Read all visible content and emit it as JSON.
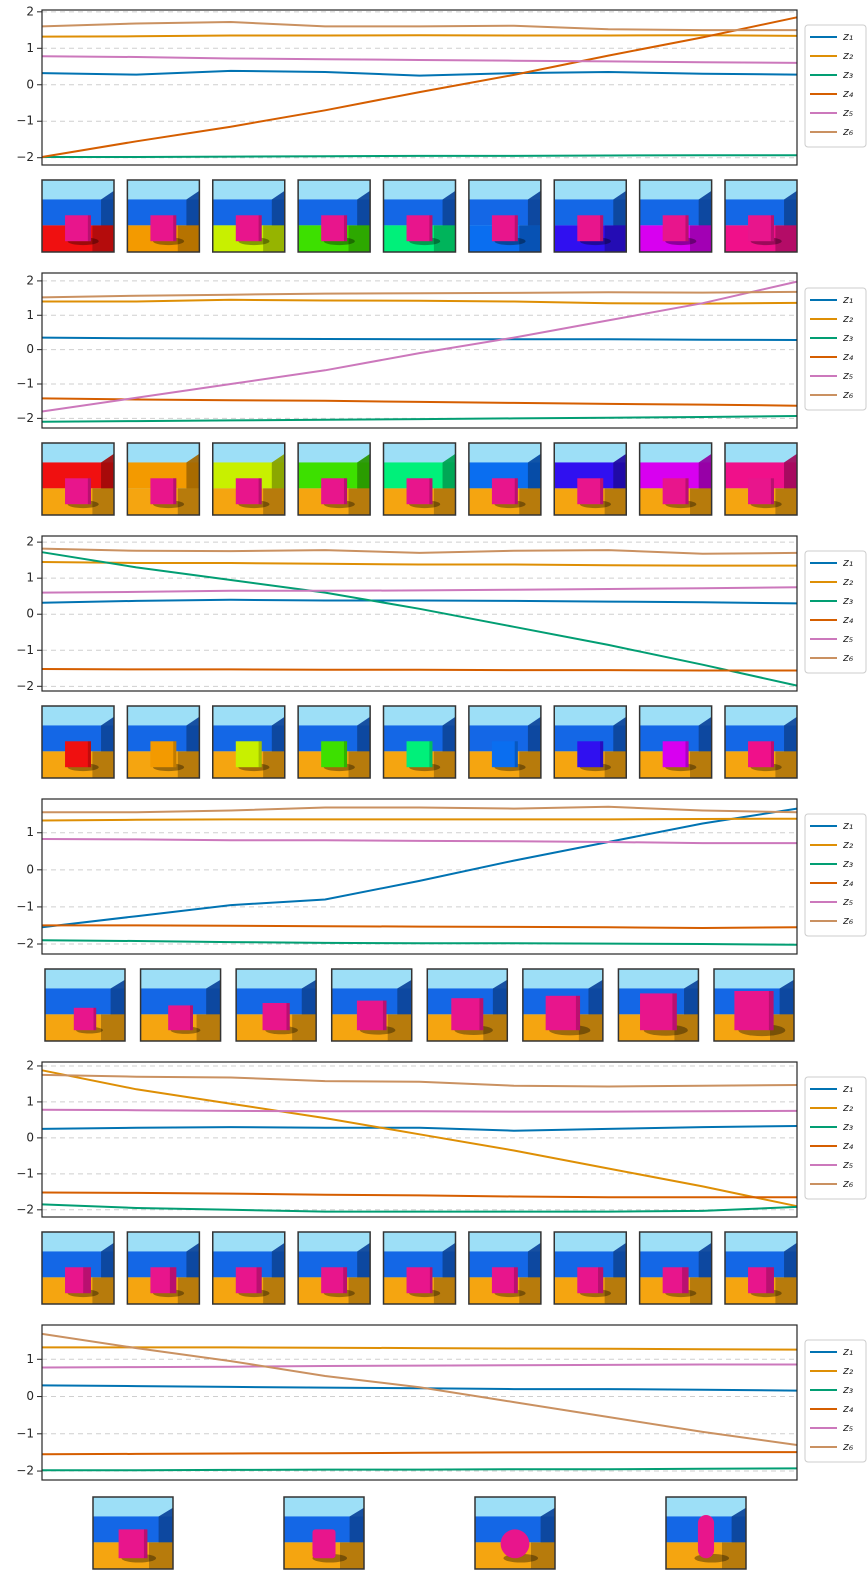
{
  "chart_data": [
    {
      "type": "line",
      "grid": true,
      "legend": "right",
      "ylim": [
        -2.2,
        2.05
      ],
      "yticks": [
        {
          "value": -2,
          "label": "−2"
        },
        {
          "value": -1,
          "label": "−1"
        },
        0,
        1,
        2
      ],
      "series": [
        {
          "name": "z₁",
          "color": "#0173b2",
          "values": [
            0.32,
            0.28,
            0.38,
            0.35,
            0.25,
            0.32,
            0.35,
            0.3,
            0.28
          ]
        },
        {
          "name": "z₂",
          "color": "#de8f05",
          "values": [
            1.32,
            1.33,
            1.35,
            1.35,
            1.36,
            1.35,
            1.35,
            1.36,
            1.34
          ]
        },
        {
          "name": "z₃",
          "color": "#029e73",
          "values": [
            -1.98,
            -1.98,
            -1.97,
            -1.96,
            -1.95,
            -1.95,
            -1.94,
            -1.93,
            -1.93
          ]
        },
        {
          "name": "z₄",
          "color": "#d55e00",
          "values": [
            -1.98,
            -1.55,
            -1.15,
            -0.7,
            -0.2,
            0.27,
            0.8,
            1.3,
            1.85
          ]
        },
        {
          "name": "z₅",
          "color": "#cc78bc",
          "values": [
            0.78,
            0.76,
            0.72,
            0.7,
            0.68,
            0.66,
            0.64,
            0.62,
            0.6
          ]
        },
        {
          "name": "z₆",
          "color": "#ca9161",
          "values": [
            1.6,
            1.68,
            1.72,
            1.6,
            1.6,
            1.62,
            1.52,
            1.5,
            1.5
          ]
        }
      ]
    },
    {
      "type": "line",
      "grid": true,
      "legend": "right",
      "ylim": [
        -2.28,
        2.23
      ],
      "yticks": [
        {
          "value": -2,
          "label": "−2"
        },
        {
          "value": -1,
          "label": "−1"
        },
        0,
        1,
        2
      ],
      "series": [
        {
          "name": "z₁",
          "color": "#0173b2",
          "values": [
            0.35,
            0.33,
            0.32,
            0.31,
            0.3,
            0.3,
            0.3,
            0.29,
            0.28
          ]
        },
        {
          "name": "z₂",
          "color": "#de8f05",
          "values": [
            1.4,
            1.4,
            1.45,
            1.43,
            1.42,
            1.4,
            1.35,
            1.34,
            1.36
          ]
        },
        {
          "name": "z₃",
          "color": "#029e73",
          "values": [
            -2.1,
            -2.08,
            -2.06,
            -2.04,
            -2.02,
            -2.0,
            -1.98,
            -1.96,
            -1.93
          ]
        },
        {
          "name": "z₄",
          "color": "#d55e00",
          "values": [
            -1.42,
            -1.45,
            -1.47,
            -1.49,
            -1.52,
            -1.55,
            -1.58,
            -1.6,
            -1.63
          ]
        },
        {
          "name": "z₅",
          "color": "#cc78bc",
          "values": [
            -1.8,
            -1.4,
            -1.0,
            -0.6,
            -0.1,
            0.35,
            0.85,
            1.35,
            1.98
          ]
        },
        {
          "name": "z₆",
          "color": "#ca9161",
          "values": [
            1.52,
            1.57,
            1.6,
            1.63,
            1.64,
            1.65,
            1.67,
            1.66,
            1.68
          ]
        }
      ]
    },
    {
      "type": "line",
      "grid": true,
      "legend": "right",
      "ylim": [
        -2.13,
        2.17
      ],
      "yticks": [
        {
          "value": -2,
          "label": "−2"
        },
        {
          "value": -1,
          "label": "−1"
        },
        0,
        1,
        2
      ],
      "series": [
        {
          "name": "z₁",
          "color": "#0173b2",
          "values": [
            0.32,
            0.37,
            0.4,
            0.38,
            0.38,
            0.37,
            0.35,
            0.33,
            0.3
          ]
        },
        {
          "name": "z₂",
          "color": "#de8f05",
          "values": [
            1.45,
            1.42,
            1.42,
            1.4,
            1.38,
            1.38,
            1.36,
            1.35,
            1.35
          ]
        },
        {
          "name": "z₃",
          "color": "#029e73",
          "values": [
            1.72,
            1.3,
            0.95,
            0.6,
            0.15,
            -0.35,
            -0.85,
            -1.4,
            -1.98
          ]
        },
        {
          "name": "z₄",
          "color": "#d55e00",
          "values": [
            -1.52,
            -1.53,
            -1.53,
            -1.54,
            -1.54,
            -1.55,
            -1.55,
            -1.56,
            -1.56
          ]
        },
        {
          "name": "z₅",
          "color": "#cc78bc",
          "values": [
            0.6,
            0.62,
            0.65,
            0.65,
            0.66,
            0.68,
            0.7,
            0.72,
            0.75
          ]
        },
        {
          "name": "z₆",
          "color": "#ca9161",
          "values": [
            1.82,
            1.76,
            1.75,
            1.78,
            1.7,
            1.76,
            1.78,
            1.68,
            1.7
          ]
        }
      ]
    },
    {
      "type": "line",
      "grid": true,
      "legend": "right",
      "ylim": [
        -2.27,
        1.91
      ],
      "yticks": [
        {
          "value": -2,
          "label": "−2"
        },
        {
          "value": -1,
          "label": "−1"
        },
        0,
        1
      ],
      "series": [
        {
          "name": "z₁",
          "color": "#0173b2",
          "values": [
            -1.55,
            -1.25,
            -0.95,
            -0.8,
            -0.3,
            0.25,
            0.75,
            1.25,
            1.65
          ]
        },
        {
          "name": "z₂",
          "color": "#de8f05",
          "values": [
            1.33,
            1.35,
            1.36,
            1.36,
            1.36,
            1.36,
            1.36,
            1.37,
            1.38
          ]
        },
        {
          "name": "z₃",
          "color": "#029e73",
          "values": [
            -1.9,
            -1.92,
            -1.95,
            -1.97,
            -1.98,
            -1.98,
            -1.99,
            -2.0,
            -2.02
          ]
        },
        {
          "name": "z₄",
          "color": "#d55e00",
          "values": [
            -1.5,
            -1.5,
            -1.51,
            -1.52,
            -1.53,
            -1.54,
            -1.55,
            -1.57,
            -1.55
          ]
        },
        {
          "name": "z₅",
          "color": "#cc78bc",
          "values": [
            0.83,
            0.82,
            0.8,
            0.8,
            0.78,
            0.77,
            0.75,
            0.72,
            0.72
          ]
        },
        {
          "name": "z₆",
          "color": "#ca9161",
          "values": [
            1.55,
            1.55,
            1.6,
            1.68,
            1.68,
            1.65,
            1.7,
            1.6,
            1.55
          ]
        }
      ]
    },
    {
      "type": "line",
      "grid": true,
      "legend": "right",
      "ylim": [
        -2.2,
        2.11
      ],
      "yticks": [
        {
          "value": -2,
          "label": "−2"
        },
        {
          "value": -1,
          "label": "−1"
        },
        0,
        1,
        2
      ],
      "series": [
        {
          "name": "z₁",
          "color": "#0173b2",
          "values": [
            0.25,
            0.28,
            0.3,
            0.28,
            0.28,
            0.2,
            0.25,
            0.3,
            0.33
          ]
        },
        {
          "name": "z₂",
          "color": "#de8f05",
          "values": [
            1.88,
            1.35,
            0.95,
            0.55,
            0.1,
            -0.35,
            -0.85,
            -1.35,
            -1.9
          ]
        },
        {
          "name": "z₃",
          "color": "#029e73",
          "values": [
            -1.85,
            -1.95,
            -2.0,
            -2.05,
            -2.05,
            -2.05,
            -2.05,
            -2.03,
            -1.92
          ]
        },
        {
          "name": "z₄",
          "color": "#d55e00",
          "values": [
            -1.52,
            -1.53,
            -1.55,
            -1.58,
            -1.6,
            -1.63,
            -1.65,
            -1.65,
            -1.65
          ]
        },
        {
          "name": "z₅",
          "color": "#cc78bc",
          "values": [
            0.78,
            0.77,
            0.75,
            0.74,
            0.74,
            0.73,
            0.73,
            0.74,
            0.75
          ]
        },
        {
          "name": "z₆",
          "color": "#ca9161",
          "values": [
            1.75,
            1.7,
            1.68,
            1.58,
            1.56,
            1.45,
            1.43,
            1.45,
            1.47
          ]
        }
      ]
    },
    {
      "type": "line",
      "grid": true,
      "legend": "right",
      "ylim": [
        -2.24,
        1.92
      ],
      "yticks": [
        {
          "value": -2,
          "label": "−2"
        },
        {
          "value": -1,
          "label": "−1"
        },
        0,
        1
      ],
      "series": [
        {
          "name": "z₁",
          "color": "#0173b2",
          "values": [
            0.3,
            0.28,
            0.26,
            0.24,
            0.22,
            0.2,
            0.2,
            0.18,
            0.16
          ]
        },
        {
          "name": "z₂",
          "color": "#de8f05",
          "values": [
            1.32,
            1.32,
            1.32,
            1.31,
            1.3,
            1.29,
            1.28,
            1.27,
            1.26
          ]
        },
        {
          "name": "z₃",
          "color": "#029e73",
          "values": [
            -1.98,
            -1.98,
            -1.97,
            -1.96,
            -1.96,
            -1.95,
            -1.95,
            -1.94,
            -1.93
          ]
        },
        {
          "name": "z₄",
          "color": "#d55e00",
          "values": [
            -1.55,
            -1.54,
            -1.53,
            -1.52,
            -1.51,
            -1.5,
            -1.49,
            -1.49,
            -1.49
          ]
        },
        {
          "name": "z₅",
          "color": "#cc78bc",
          "values": [
            0.78,
            0.79,
            0.8,
            0.82,
            0.83,
            0.84,
            0.85,
            0.86,
            0.86
          ]
        },
        {
          "name": "z₆",
          "color": "#ca9161",
          "values": [
            1.68,
            1.3,
            0.95,
            0.55,
            0.25,
            -0.15,
            -0.55,
            -0.95,
            -1.3
          ]
        }
      ]
    }
  ]
}
